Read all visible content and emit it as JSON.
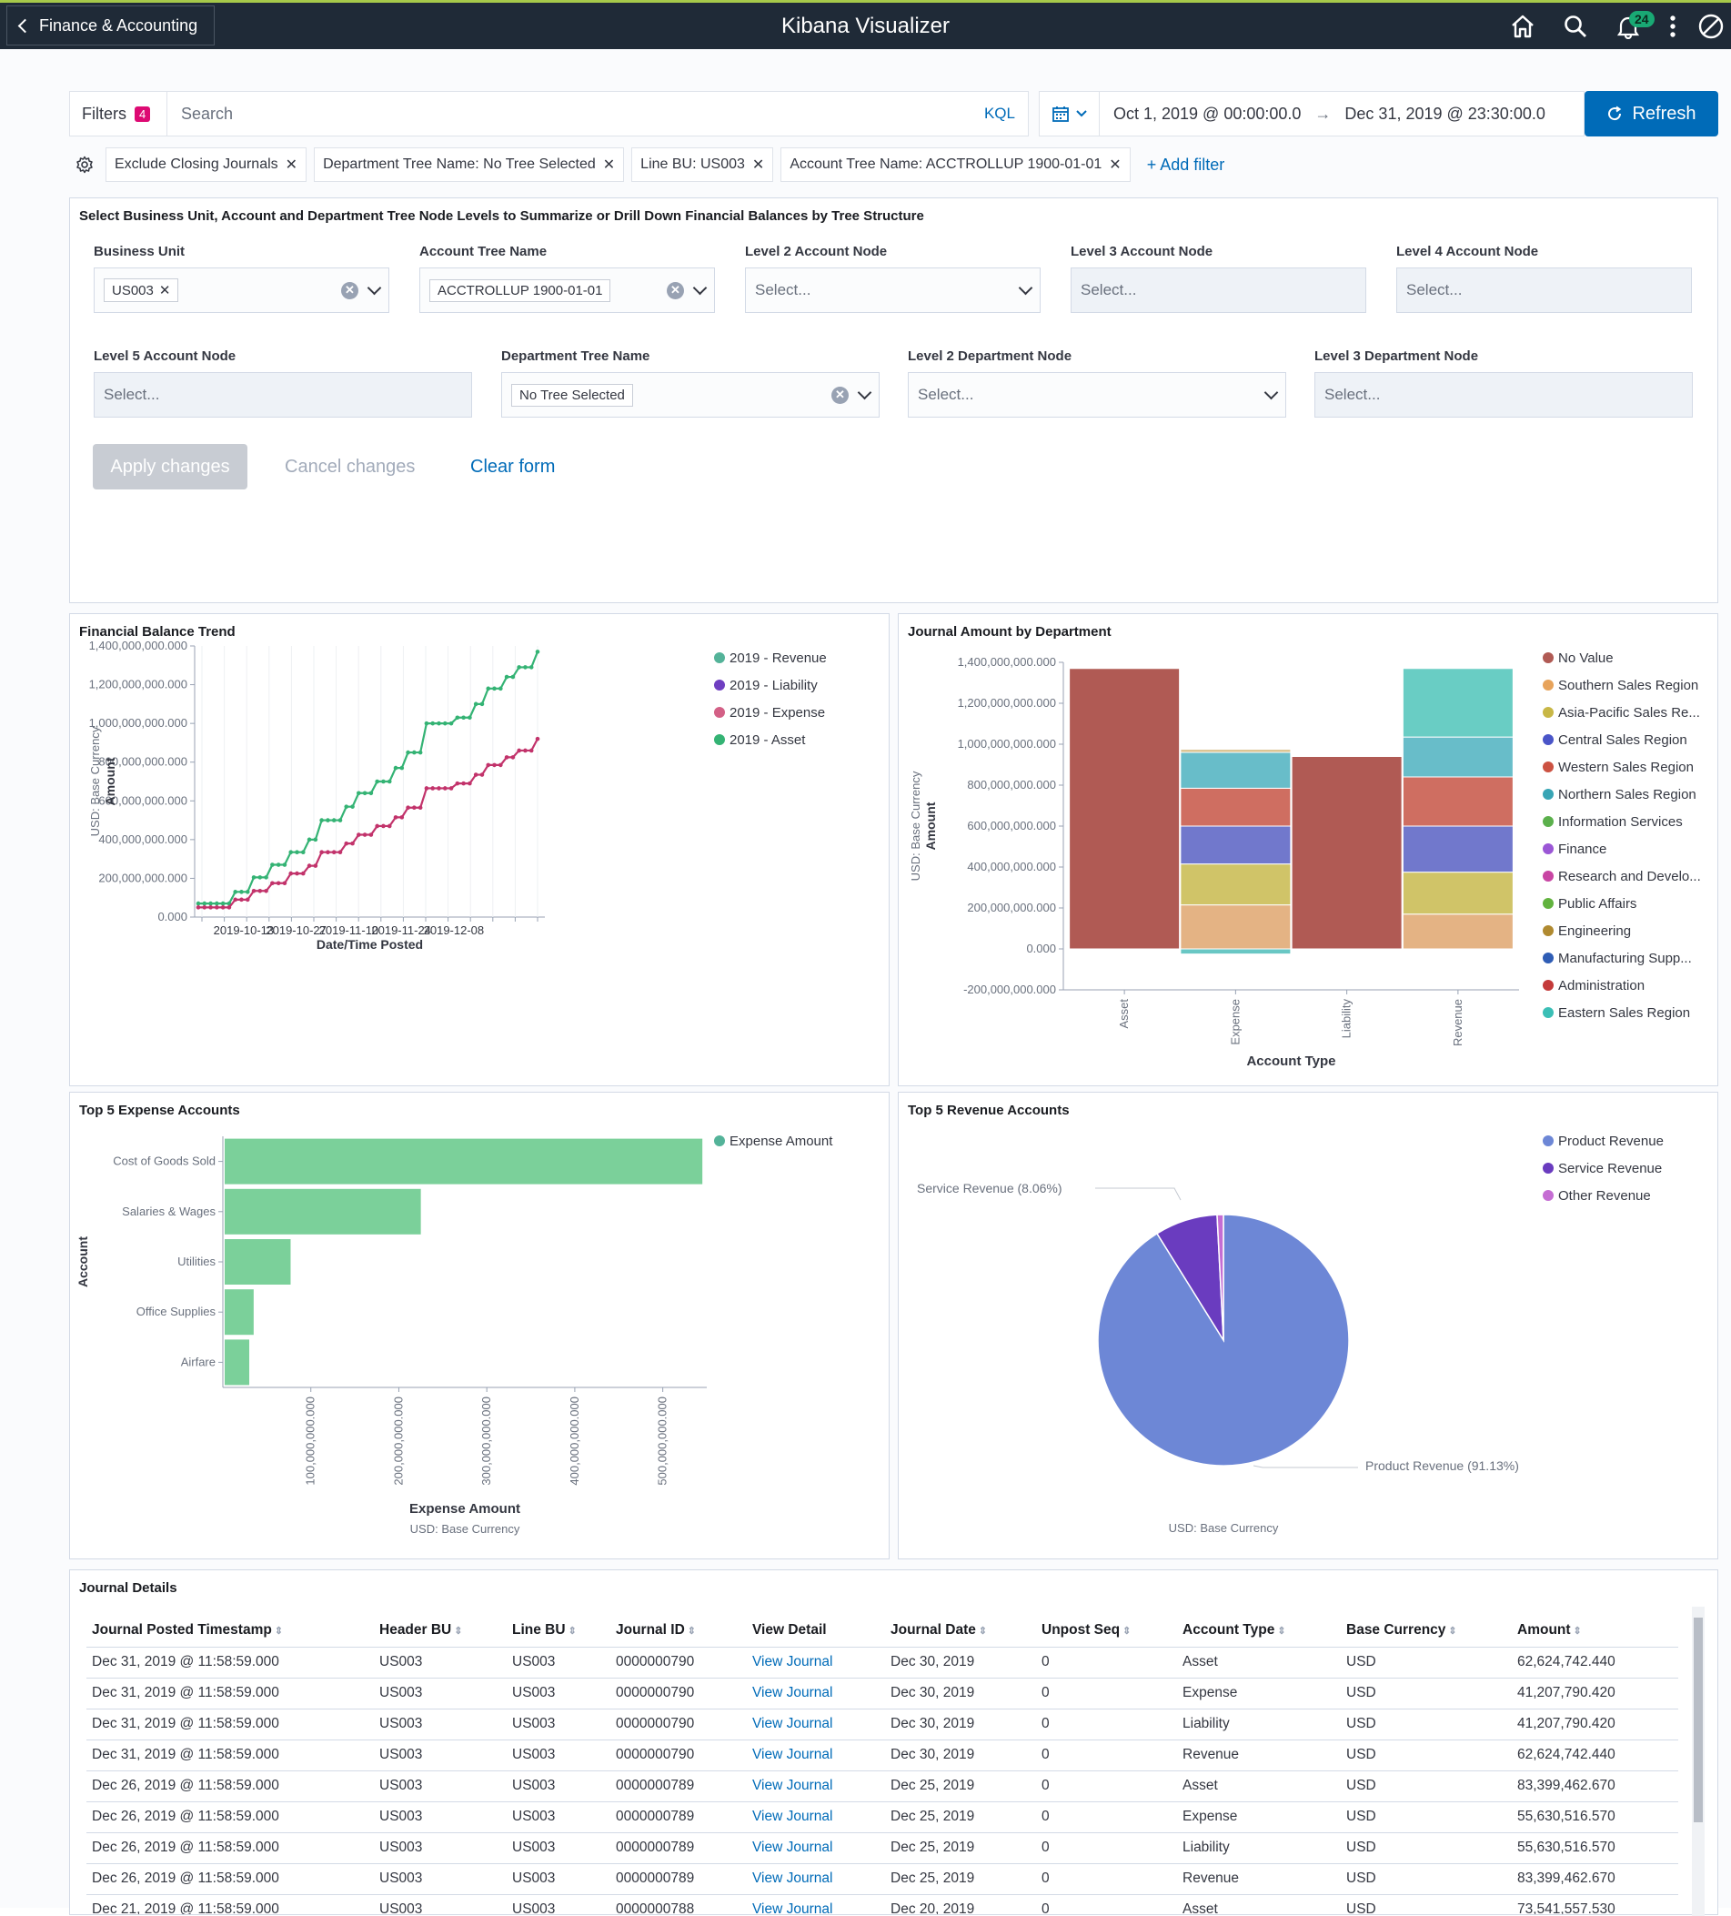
{
  "header": {
    "back_label": "Finance & Accounting",
    "title": "Kibana Visualizer",
    "notification_count": "24"
  },
  "query": {
    "filters_label": "Filters",
    "filters_count": "4",
    "search_placeholder": "Search",
    "kql_label": "KQL",
    "date_start": "Oct 1, 2019 @ 00:00:00.0",
    "date_end": "Dec 31, 2019 @ 23:30:00.0",
    "date_arrow": "→",
    "refresh_label": "Refresh"
  },
  "filter_pills": [
    "Exclude Closing Journals",
    "Department Tree Name: No Tree Selected",
    "Line BU: US003",
    "Account Tree Name: ACCTROLLUP 1900-01-01"
  ],
  "add_filter_label": "+ Add filter",
  "controls": {
    "title": "Select Business Unit, Account and Department Tree Node Levels to Summarize or Drill Down Financial Balances by Tree Structure",
    "business_unit": {
      "label": "Business Unit",
      "value": "US003"
    },
    "account_tree": {
      "label": "Account Tree Name",
      "value": "ACCTROLLUP 1900-01-01"
    },
    "l2_account": {
      "label": "Level 2 Account Node",
      "placeholder": "Select..."
    },
    "l3_account": {
      "label": "Level 3 Account Node",
      "placeholder": "Select..."
    },
    "l4_account": {
      "label": "Level 4 Account Node",
      "placeholder": "Select..."
    },
    "l5_account": {
      "label": "Level 5 Account Node",
      "placeholder": "Select..."
    },
    "dept_tree": {
      "label": "Department Tree Name",
      "value": "No Tree Selected"
    },
    "l2_dept": {
      "label": "Level 2 Department Node",
      "placeholder": "Select..."
    },
    "l3_dept": {
      "label": "Level 3 Department Node",
      "placeholder": "Select..."
    },
    "apply_label": "Apply changes",
    "cancel_label": "Cancel changes",
    "clear_label": "Clear form"
  },
  "chart_data": [
    {
      "type": "line",
      "title": "Financial Balance Trend",
      "xlabel": "Date/Time Posted",
      "ylabel": "Amount",
      "ylabel2": "USD: Base Currency",
      "yticks": [
        "1,400,000,000.000",
        "1,200,000,000.000",
        "1,000,000,000.000",
        "800,000,000.000",
        "600,000,000.000",
        "400,000,000.000",
        "200,000,000.000",
        "0.000"
      ],
      "xticks": [
        "2019-10-13",
        "2019-10-27",
        "2019-11-10",
        "2019-11-24",
        "2019-12-08"
      ],
      "ylim": [
        0,
        1400000000
      ],
      "legend": [
        {
          "name": "2019 - Revenue",
          "color": "#54b399"
        },
        {
          "name": "2019 - Liability",
          "color": "#6f3fc1"
        },
        {
          "name": "2019 - Expense",
          "color": "#d36086"
        },
        {
          "name": "2019 - Asset",
          "color": "#34b374"
        }
      ],
      "series": [
        {
          "name": "2019 - Asset",
          "color": "#34b374",
          "values": [
            70,
            70,
            70,
            70,
            70,
            70,
            130,
            130,
            130,
            205,
            205,
            205,
            270,
            270,
            270,
            335,
            335,
            335,
            400,
            400,
            500,
            500,
            500,
            500,
            570,
            570,
            640,
            640,
            640,
            700,
            700,
            700,
            770,
            770,
            850,
            850,
            850,
            1000,
            1000,
            1000,
            1000,
            1000,
            1030,
            1030,
            1030,
            1100,
            1100,
            1180,
            1180,
            1180,
            1240,
            1240,
            1290,
            1290,
            1290,
            1370
          ]
        },
        {
          "name": "2019 - Expense",
          "color": "#c2336b",
          "values": [
            50,
            50,
            50,
            50,
            50,
            50,
            90,
            90,
            90,
            135,
            135,
            135,
            175,
            175,
            175,
            225,
            225,
            225,
            265,
            265,
            335,
            335,
            335,
            335,
            380,
            380,
            425,
            425,
            425,
            470,
            470,
            470,
            515,
            515,
            565,
            565,
            565,
            665,
            665,
            665,
            665,
            665,
            690,
            690,
            690,
            735,
            735,
            785,
            785,
            785,
            825,
            825,
            860,
            860,
            860,
            920
          ]
        }
      ]
    },
    {
      "type": "bar",
      "stacked": true,
      "title": "Journal Amount by Department",
      "xlabel": "Account Type",
      "ylabel": "Amount",
      "ylabel2": "USD: Base Currency",
      "yticks": [
        "1,400,000,000.000",
        "1,200,000,000.000",
        "1,000,000,000.000",
        "800,000,000.000",
        "600,000,000.000",
        "400,000,000.000",
        "200,000,000.000",
        "0.000",
        "-200,000,000.000"
      ],
      "ylim": [
        -200000000,
        1400000000
      ],
      "categories": [
        "Asset",
        "Expense",
        "Liability",
        "Revenue"
      ],
      "legend": [
        {
          "name": "No Value",
          "color": "#b05a54"
        },
        {
          "name": "Southern Sales Region",
          "color": "#e7a35b"
        },
        {
          "name": "Asia-Pacific Sales Re...",
          "color": "#c8b746"
        },
        {
          "name": "Central Sales Region",
          "color": "#4a55c8"
        },
        {
          "name": "Western Sales Region",
          "color": "#cc5242"
        },
        {
          "name": "Northern Sales Region",
          "color": "#38a5b5"
        },
        {
          "name": "Information Services",
          "color": "#5bb04c"
        },
        {
          "name": "Finance",
          "color": "#9b57d6"
        },
        {
          "name": "Research and Develo...",
          "color": "#c845a3"
        },
        {
          "name": "Public Affairs",
          "color": "#62b33f"
        },
        {
          "name": "Engineering",
          "color": "#b08a30"
        },
        {
          "name": "Manufacturing Supp...",
          "color": "#2f5db5"
        },
        {
          "name": "Administration",
          "color": "#c43a3a"
        },
        {
          "name": "Eastern Sales Region",
          "color": "#3bbfb6"
        }
      ],
      "stacks": [
        {
          "category": "Asset",
          "segments": [
            {
              "name": "No Value",
              "value": 1370000000,
              "color": "#b05a54"
            }
          ]
        },
        {
          "category": "Expense",
          "segments": [
            {
              "name": "Eastern Sales Region",
              "value": -25000000,
              "color": "#69c7c4"
            },
            {
              "name": "Southern Sales Region",
              "value": 215000000,
              "color": "#e4b384"
            },
            {
              "name": "Asia-Pacific Sales Re...",
              "value": 200000000,
              "color": "#d0c468"
            },
            {
              "name": "Central Sales Region",
              "value": 185000000,
              "color": "#7178cc"
            },
            {
              "name": "Western Sales Region",
              "value": 185000000,
              "color": "#cf6e61"
            },
            {
              "name": "Northern Sales Region",
              "value": 175000000,
              "color": "#68bdc9"
            },
            {
              "name": "Engineering",
              "value": 15000000,
              "color": "#d9c08c"
            }
          ]
        },
        {
          "category": "Liability",
          "segments": [
            {
              "name": "No Value",
              "value": 940000000,
              "color": "#b05a54"
            }
          ]
        },
        {
          "category": "Revenue",
          "segments": [
            {
              "name": "Southern Sales Region",
              "value": 170000000,
              "color": "#e4b384"
            },
            {
              "name": "Asia-Pacific Sales Re...",
              "value": 205000000,
              "color": "#d0c468"
            },
            {
              "name": "Central Sales Region",
              "value": 225000000,
              "color": "#7178cc"
            },
            {
              "name": "Western Sales Region",
              "value": 240000000,
              "color": "#cf6e61"
            },
            {
              "name": "Northern Sales Region",
              "value": 195000000,
              "color": "#68bdc9"
            },
            {
              "name": "Eastern Sales Region",
              "value": 335000000,
              "color": "#69cdc4"
            }
          ]
        }
      ]
    },
    {
      "type": "bar",
      "orientation": "horizontal",
      "title": "Top 5 Expense Accounts",
      "xlabel": "Expense Amount",
      "xlabel2": "USD: Base Currency",
      "ylabel": "Account",
      "categories": [
        "Cost of Goods Sold",
        "Salaries & Wages",
        "Utilities",
        "Office Supplies",
        "Airfare"
      ],
      "values": [
        545000000,
        225000000,
        77000000,
        35000000,
        30000000
      ],
      "xticks": [
        "100,000,000.000",
        "200,000,000.000",
        "300,000,000.000",
        "400,000,000.000",
        "500,000,000.000"
      ],
      "xlim": [
        0,
        550000000
      ],
      "legend": [
        {
          "name": "Expense Amount",
          "color": "#54b399"
        }
      ],
      "color": "#7bd09a"
    },
    {
      "type": "pie",
      "title": "Top 5 Revenue Accounts",
      "caption": "USD: Base Currency",
      "slices": [
        {
          "name": "Product Revenue",
          "value": 91.13,
          "label": "Product Revenue (91.13%)",
          "color": "#6d87d6"
        },
        {
          "name": "Service Revenue",
          "value": 8.06,
          "label": "Service Revenue (8.06%)",
          "color": "#6a3cbf"
        },
        {
          "name": "Other Revenue",
          "value": 0.81,
          "label": "",
          "color": "#c56dd3"
        }
      ],
      "legend": [
        {
          "name": "Product Revenue",
          "color": "#6d87d6"
        },
        {
          "name": "Service Revenue",
          "color": "#6a3cbf"
        },
        {
          "name": "Other Revenue",
          "color": "#c56dd3"
        }
      ]
    }
  ],
  "journal": {
    "title": "Journal Details",
    "columns": [
      "Journal Posted Timestamp",
      "Header BU",
      "Line BU",
      "Journal ID",
      "View Detail",
      "Journal Date",
      "Unpost Seq",
      "Account Type",
      "Base Currency",
      "Amount"
    ],
    "rows": [
      [
        "Dec 31, 2019 @ 11:58:59.000",
        "US003",
        "US003",
        "0000000790",
        "View Journal",
        "Dec 30, 2019",
        "0",
        "Asset",
        "USD",
        "62,624,742.440"
      ],
      [
        "Dec 31, 2019 @ 11:58:59.000",
        "US003",
        "US003",
        "0000000790",
        "View Journal",
        "Dec 30, 2019",
        "0",
        "Expense",
        "USD",
        "41,207,790.420"
      ],
      [
        "Dec 31, 2019 @ 11:58:59.000",
        "US003",
        "US003",
        "0000000790",
        "View Journal",
        "Dec 30, 2019",
        "0",
        "Liability",
        "USD",
        "41,207,790.420"
      ],
      [
        "Dec 31, 2019 @ 11:58:59.000",
        "US003",
        "US003",
        "0000000790",
        "View Journal",
        "Dec 30, 2019",
        "0",
        "Revenue",
        "USD",
        "62,624,742.440"
      ],
      [
        "Dec 26, 2019 @ 11:58:59.000",
        "US003",
        "US003",
        "0000000789",
        "View Journal",
        "Dec 25, 2019",
        "0",
        "Asset",
        "USD",
        "83,399,462.670"
      ],
      [
        "Dec 26, 2019 @ 11:58:59.000",
        "US003",
        "US003",
        "0000000789",
        "View Journal",
        "Dec 25, 2019",
        "0",
        "Expense",
        "USD",
        "55,630,516.570"
      ],
      [
        "Dec 26, 2019 @ 11:58:59.000",
        "US003",
        "US003",
        "0000000789",
        "View Journal",
        "Dec 25, 2019",
        "0",
        "Liability",
        "USD",
        "55,630,516.570"
      ],
      [
        "Dec 26, 2019 @ 11:58:59.000",
        "US003",
        "US003",
        "0000000789",
        "View Journal",
        "Dec 25, 2019",
        "0",
        "Revenue",
        "USD",
        "83,399,462.670"
      ],
      [
        "Dec 21, 2019 @ 11:58:59.000",
        "US003",
        "US003",
        "0000000788",
        "View Journal",
        "Dec 20, 2019",
        "0",
        "Asset",
        "USD",
        "73,541,557.530"
      ]
    ]
  }
}
